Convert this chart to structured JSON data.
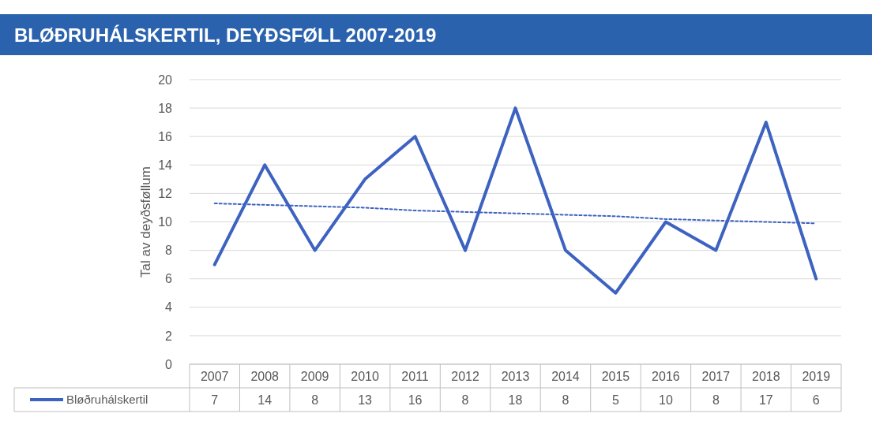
{
  "chart_data": {
    "type": "line",
    "title": "BLØÐRUHÁLSKERTIL, DEYÐSFØLL 2007-2019",
    "ylabel": "Tal av deyðsføllum",
    "categories": [
      "2007",
      "2008",
      "2009",
      "2010",
      "2011",
      "2012",
      "2013",
      "2014",
      "2015",
      "2016",
      "2017",
      "2018",
      "2019"
    ],
    "series": [
      {
        "name": "Bløðruhálskertil",
        "color": "#3d62c0",
        "values": [
          7,
          14,
          8,
          13,
          16,
          8,
          18,
          8,
          5,
          10,
          8,
          17,
          6
        ],
        "value_labels": [
          "7",
          "14",
          "8",
          "13",
          "16",
          "8",
          "18",
          "8",
          "5",
          "10",
          "8",
          "17",
          "6"
        ]
      },
      {
        "type": "line",
        "values": [
          11.3,
          11.2,
          11.1,
          11.0,
          10.8,
          10.7,
          10.6,
          10.5,
          10.4,
          10.2,
          10.1,
          10.0,
          9.9
        ],
        "color": "#3d62c0",
        "line_style": "dotted"
      }
    ],
    "ylim": [
      0,
      20
    ],
    "yticks": [
      0,
      2,
      4,
      6,
      8,
      10,
      12,
      14,
      16,
      18,
      20
    ],
    "grid": "y",
    "legend": "bottom",
    "marker": "none",
    "line_style": "solid"
  }
}
